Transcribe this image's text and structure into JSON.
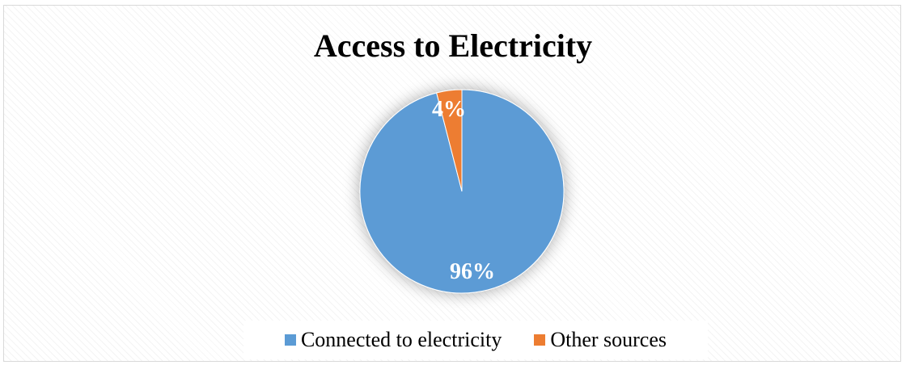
{
  "chart_data": {
    "type": "pie",
    "title": "Access to Electricity",
    "categories": [
      "Connected to electricity",
      "Other sources"
    ],
    "values": [
      96,
      4
    ],
    "data_labels": [
      "96%",
      "4%"
    ],
    "colors": [
      "#5b9bd5",
      "#ed7d31"
    ],
    "legend_position": "bottom"
  }
}
